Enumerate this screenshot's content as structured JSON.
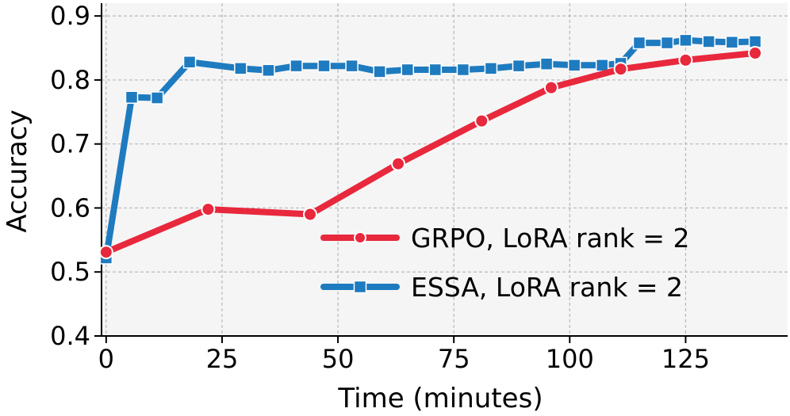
{
  "chart_data": {
    "type": "line",
    "title": "",
    "xlabel": "Time (minutes)",
    "ylabel": "Accuracy",
    "xlim": [
      -1,
      147
    ],
    "ylim": [
      0.4,
      0.92
    ],
    "xticks": [
      0,
      25,
      50,
      75,
      100,
      125
    ],
    "yticks": [
      0.4,
      0.5,
      0.6,
      0.7,
      0.8,
      0.9
    ],
    "xtick_labels": [
      "0",
      "25",
      "50",
      "75",
      "100",
      "125"
    ],
    "ytick_labels": [
      "0.4",
      "0.5",
      "0.6",
      "0.7",
      "0.8",
      "0.9"
    ],
    "grid": true,
    "legend_position": "lower-right",
    "background": "#f5f5f5",
    "series": [
      {
        "name": "GRPO, LoRA rank = 2",
        "color": "#e8283c",
        "marker": "circle",
        "x": [
          0,
          22,
          44,
          63,
          81,
          96,
          111,
          125,
          140
        ],
        "y": [
          0.531,
          0.598,
          0.59,
          0.669,
          0.736,
          0.788,
          0.817,
          0.831,
          0.842
        ]
      },
      {
        "name": "ESSA, LoRA rank = 2",
        "color": "#1f7bbf",
        "marker": "square",
        "x": [
          0,
          5.5,
          11,
          18,
          29,
          35,
          41,
          47,
          53,
          59,
          65,
          71,
          77,
          83,
          89,
          95,
          101,
          107,
          111,
          115,
          121,
          125,
          130,
          135,
          140
        ],
        "y": [
          0.522,
          0.773,
          0.772,
          0.828,
          0.818,
          0.815,
          0.822,
          0.822,
          0.822,
          0.813,
          0.816,
          0.816,
          0.816,
          0.818,
          0.822,
          0.825,
          0.823,
          0.823,
          0.826,
          0.858,
          0.858,
          0.862,
          0.86,
          0.859,
          0.86
        ]
      }
    ]
  }
}
